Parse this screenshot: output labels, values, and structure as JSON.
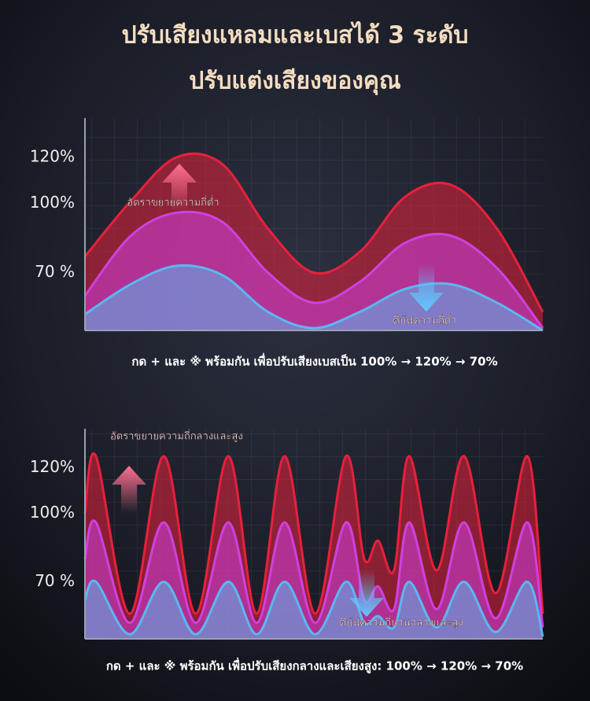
{
  "header": {
    "title_lines": [
      "ปรับเสียงแหลมและเบสได้ 3 ระดับ",
      "ปรับแต่งเสียงของคุณ"
    ]
  },
  "chart_data": [
    {
      "type": "area",
      "xlim": [
        0,
        10
      ],
      "ylim": [
        45,
        137
      ],
      "yticks": [
        {
          "value": 70,
          "label": "70 %"
        },
        {
          "value": 100,
          "label": "100%"
        },
        {
          "value": 120,
          "label": "120%"
        }
      ],
      "x": [
        0,
        1,
        2,
        3,
        4,
        5,
        6,
        7,
        8,
        9,
        10
      ],
      "series": [
        {
          "color": "#e8203c",
          "values": [
            77,
            101,
            120,
            117,
            89,
            70,
            79,
            103,
            108,
            89,
            53
          ]
        },
        {
          "color": "#d040e0",
          "values": [
            60,
            86,
            96,
            92,
            70,
            57,
            66,
            83,
            86,
            72,
            46
          ]
        },
        {
          "color": "#5ab8f0",
          "values": [
            52,
            65,
            73,
            69,
            53,
            46,
            53,
            63,
            65,
            57,
            45
          ]
        }
      ],
      "annotations": [
        "อัตราขยายความถี่ต่ำ",
        "ดีบัฟความถี่ต่ำ"
      ],
      "caption": "กด + และ ※ พร้อมกัน เพื่อปรับเสียงเบสเป็น 100% → 120% → 70%"
    },
    {
      "type": "area",
      "xlim": [
        0,
        10
      ],
      "ylim": [
        45,
        137
      ],
      "yticks": [
        {
          "value": 70,
          "label": "70 %"
        },
        {
          "value": 100,
          "label": "100%"
        },
        {
          "value": 120,
          "label": "120%"
        }
      ],
      "x": [
        0,
        0.24,
        0.98,
        1.72,
        2.42,
        3.13,
        3.75,
        4.36,
        5.03,
        5.7,
        6.1,
        6.4,
        6.75,
        7.08,
        7.68,
        8.28,
        8.97,
        9.66,
        10
      ],
      "series": [
        {
          "color": "#e8203c",
          "values": [
            100,
            125,
            56,
            125,
            56,
            125,
            56,
            125,
            56,
            125,
            80,
            88,
            75,
            125,
            75,
            125,
            65,
            125,
            56
          ]
        },
        {
          "color": "#d040e0",
          "values": [
            80,
            96,
            52,
            96,
            52,
            96,
            52,
            96,
            52,
            96,
            62,
            68,
            58,
            96,
            58,
            96,
            54,
            96,
            50
          ]
        },
        {
          "color": "#5ab8f0",
          "values": [
            62,
            70,
            47,
            70,
            47,
            70,
            47,
            70,
            47,
            70,
            52,
            55,
            50,
            70,
            50,
            70,
            48,
            70,
            46
          ]
        }
      ],
      "annotations": [
        "อัตราขยายความถี่กลางและสูง",
        "ดีบัฟความถี่ปานกลางและสูง"
      ],
      "caption": "กด + และ ※ พร้อมกัน เพื่อปรับเสียงกลางและเสียงสูง: 100% → 120% → 70%"
    }
  ]
}
